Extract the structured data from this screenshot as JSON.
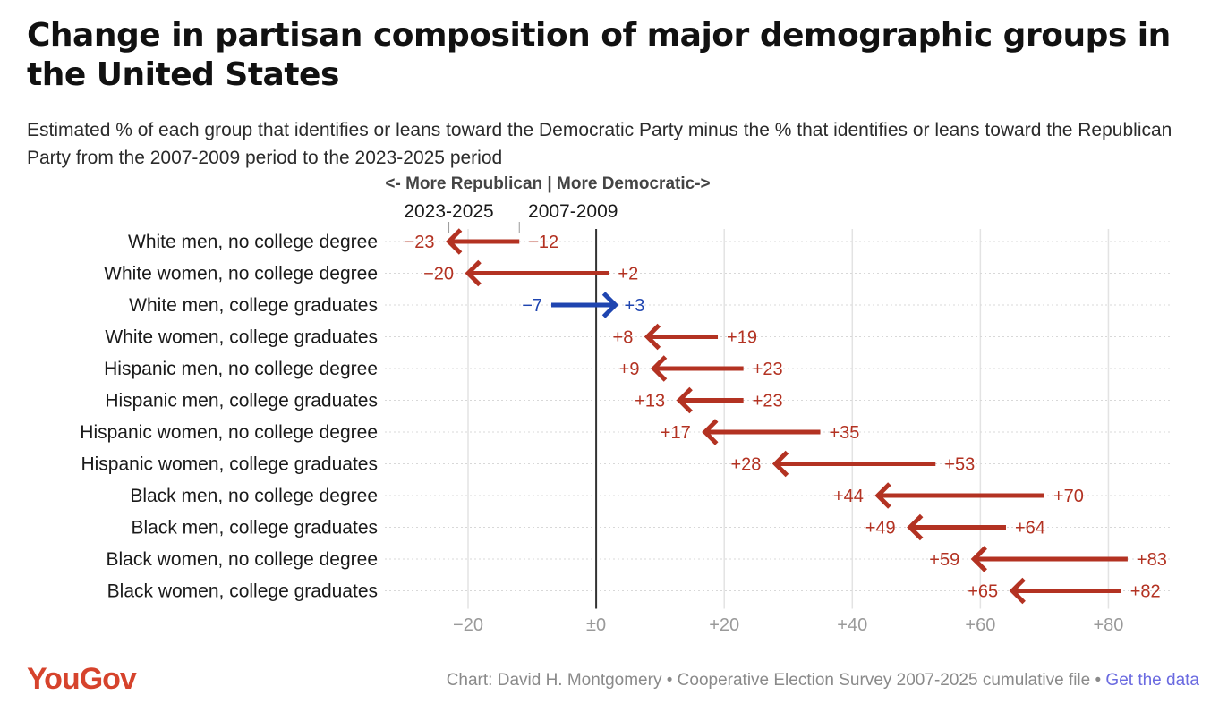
{
  "title": "Change in partisan composition of major demographic groups in the United States",
  "subtitle": "Estimated % of each group that identifies or leans toward the Democratic Party minus the % that identifies or leans toward the Republican Party from the 2007-2009 period to the 2023-2025 period",
  "footer": {
    "logo": "YouGov",
    "source": "Chart: David H. Montgomery • Cooperative Election Survey 2007-2025 cumulative file •",
    "link": "Get the data"
  },
  "chart_data": {
    "type": "arrow",
    "direction_label": "<- More Republican | More Democratic->",
    "key_start_label": "2007-2009",
    "key_end_label": "2023-2025",
    "xlim": [
      -33,
      90
    ],
    "xticks": [
      -20,
      0,
      20,
      40,
      60,
      80
    ],
    "xtick_labels": [
      "−20",
      "±0",
      "+20",
      "+40",
      "+60",
      "+80"
    ],
    "grid": true,
    "colors": {
      "toward_republican": "#b33222",
      "toward_democratic": "#1f45b0"
    },
    "rows": [
      {
        "group": "White men, no college degree",
        "start": -12,
        "end": -23,
        "start_label": "−12",
        "end_label": "−23"
      },
      {
        "group": "White women, no college degree",
        "start": 2,
        "end": -20,
        "start_label": "+2",
        "end_label": "−20"
      },
      {
        "group": "White men, college graduates",
        "start": -7,
        "end": 3,
        "start_label": "−7",
        "end_label": "+3"
      },
      {
        "group": "White women, college graduates",
        "start": 19,
        "end": 8,
        "start_label": "+19",
        "end_label": "+8"
      },
      {
        "group": "Hispanic men, no college degree",
        "start": 23,
        "end": 9,
        "start_label": "+23",
        "end_label": "+9"
      },
      {
        "group": "Hispanic men, college graduates",
        "start": 23,
        "end": 13,
        "start_label": "+23",
        "end_label": "+13"
      },
      {
        "group": "Hispanic women, no college degree",
        "start": 35,
        "end": 17,
        "start_label": "+35",
        "end_label": "+17"
      },
      {
        "group": "Hispanic women, college graduates",
        "start": 53,
        "end": 28,
        "start_label": "+53",
        "end_label": "+28"
      },
      {
        "group": "Black men, no college degree",
        "start": 70,
        "end": 44,
        "start_label": "+70",
        "end_label": "+44"
      },
      {
        "group": "Black men, college graduates",
        "start": 64,
        "end": 49,
        "start_label": "+64",
        "end_label": "+49"
      },
      {
        "group": "Black women, no college degree",
        "start": 83,
        "end": 59,
        "start_label": "+83",
        "end_label": "+59"
      },
      {
        "group": "Black women, college graduates",
        "start": 82,
        "end": 65,
        "start_label": "+82",
        "end_label": "+65"
      }
    ]
  }
}
